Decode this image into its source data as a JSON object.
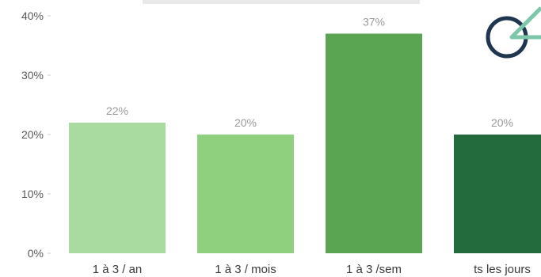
{
  "chart_data": {
    "type": "bar",
    "categories": [
      "1 à 3 / an",
      "1 à 3 / mois",
      "1 à 3 /sem",
      "ts les jours"
    ],
    "values": [
      22,
      20,
      37,
      20
    ],
    "data_labels": [
      "22%",
      "20%",
      "37%",
      "20%"
    ],
    "bar_colors": [
      "#a9dba0",
      "#8fd07f",
      "#5aa552",
      "#236a3c"
    ],
    "ylim": [
      0,
      40
    ],
    "y_ticks": [
      0,
      10,
      20,
      30,
      40
    ],
    "y_tick_labels": [
      "0%",
      "10%",
      "20%",
      "30%",
      "40%"
    ],
    "grid": false,
    "legend": "none"
  },
  "logo": {
    "icon": "circle-triangle-logo-icon",
    "ring_color": "#1f3550",
    "accent_color": "#7cc6a9"
  }
}
